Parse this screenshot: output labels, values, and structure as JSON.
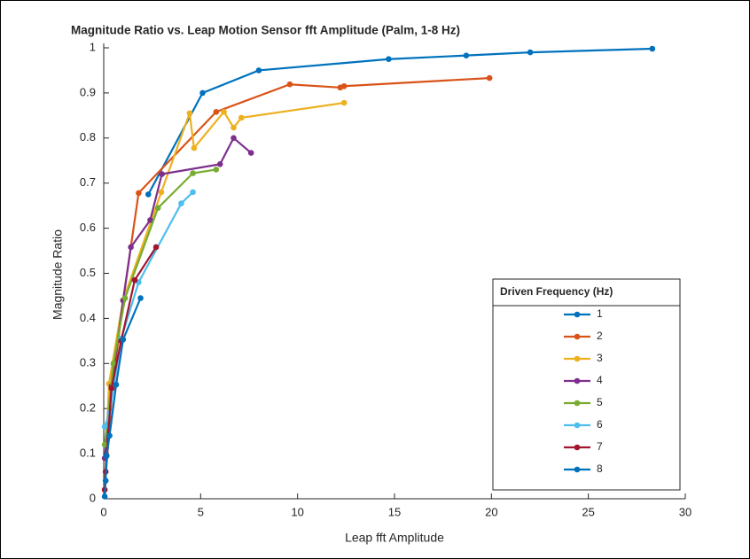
{
  "chart_data": {
    "type": "line",
    "title": "Magnitude Ratio vs. Leap Motion Sensor fft Amplitude (Palm, 1-8 Hz)",
    "x_label": "Leap fft Amplitude",
    "y_label": "Magnitude Ratio",
    "legend_title": "Driven Frequency (Hz)",
    "legend_position": "lower right",
    "xlim": [
      0,
      30
    ],
    "xticks": [
      0,
      5,
      10,
      15,
      20,
      25,
      30
    ],
    "ylim": [
      0,
      1
    ],
    "yticks": [
      0,
      0.1,
      0.2,
      0.3,
      0.4,
      0.5,
      0.6,
      0.7,
      0.8,
      0.9,
      1
    ],
    "series": [
      {
        "name": "1",
        "color": "#0072BD",
        "x": [
          2.3,
          5.1,
          8.0,
          14.7,
          18.7,
          22.0,
          28.3
        ],
        "values": [
          0.675,
          0.9,
          0.95,
          0.975,
          0.983,
          0.99,
          0.998
        ]
      },
      {
        "name": "2",
        "color": "#D95319",
        "x": [
          0.05,
          0.45,
          1.0,
          1.8,
          5.8,
          9.6,
          12.2,
          12.4,
          19.9
        ],
        "values": [
          0.02,
          0.245,
          0.44,
          0.678,
          0.858,
          0.919,
          0.912,
          0.915,
          0.933
        ]
      },
      {
        "name": "3",
        "color": "#EDB120",
        "x": [
          0.05,
          0.27,
          1.0,
          2.97,
          4.43,
          4.66,
          6.2,
          6.7,
          7.1,
          12.4
        ],
        "values": [
          0.02,
          0.255,
          0.44,
          0.68,
          0.855,
          0.778,
          0.858,
          0.823,
          0.845,
          0.878
        ]
      },
      {
        "name": "4",
        "color": "#7E2F8E",
        "x": [
          0.05,
          0.4,
          1.0,
          1.4,
          2.4,
          3.0,
          6.0,
          6.7,
          7.6
        ],
        "values": [
          0.09,
          0.25,
          0.44,
          0.558,
          0.618,
          0.72,
          0.742,
          0.8,
          0.767
        ]
      },
      {
        "name": "5",
        "color": "#77AC30",
        "x": [
          0.05,
          0.5,
          1.1,
          2.8,
          4.6,
          5.8
        ],
        "values": [
          0.12,
          0.3,
          0.445,
          0.645,
          0.722,
          0.73
        ]
      },
      {
        "name": "6",
        "color": "#4DBEEE",
        "x": [
          0.05,
          0.3,
          0.9,
          1.8,
          4.0,
          4.6
        ],
        "values": [
          0.16,
          0.19,
          0.355,
          0.48,
          0.655,
          0.68
        ]
      },
      {
        "name": "7",
        "color": "#A2142F",
        "x": [
          0.05,
          0.1,
          0.4,
          0.9,
          1.6,
          2.7
        ],
        "values": [
          0.02,
          0.06,
          0.245,
          0.35,
          0.485,
          0.558
        ]
      },
      {
        "name": "8",
        "color": "#0072BD",
        "x": [
          0.05,
          0.1,
          0.15,
          0.3,
          0.64,
          1.0,
          1.9
        ],
        "values": [
          0.005,
          0.04,
          0.095,
          0.14,
          0.253,
          0.353,
          0.445
        ]
      }
    ]
  }
}
